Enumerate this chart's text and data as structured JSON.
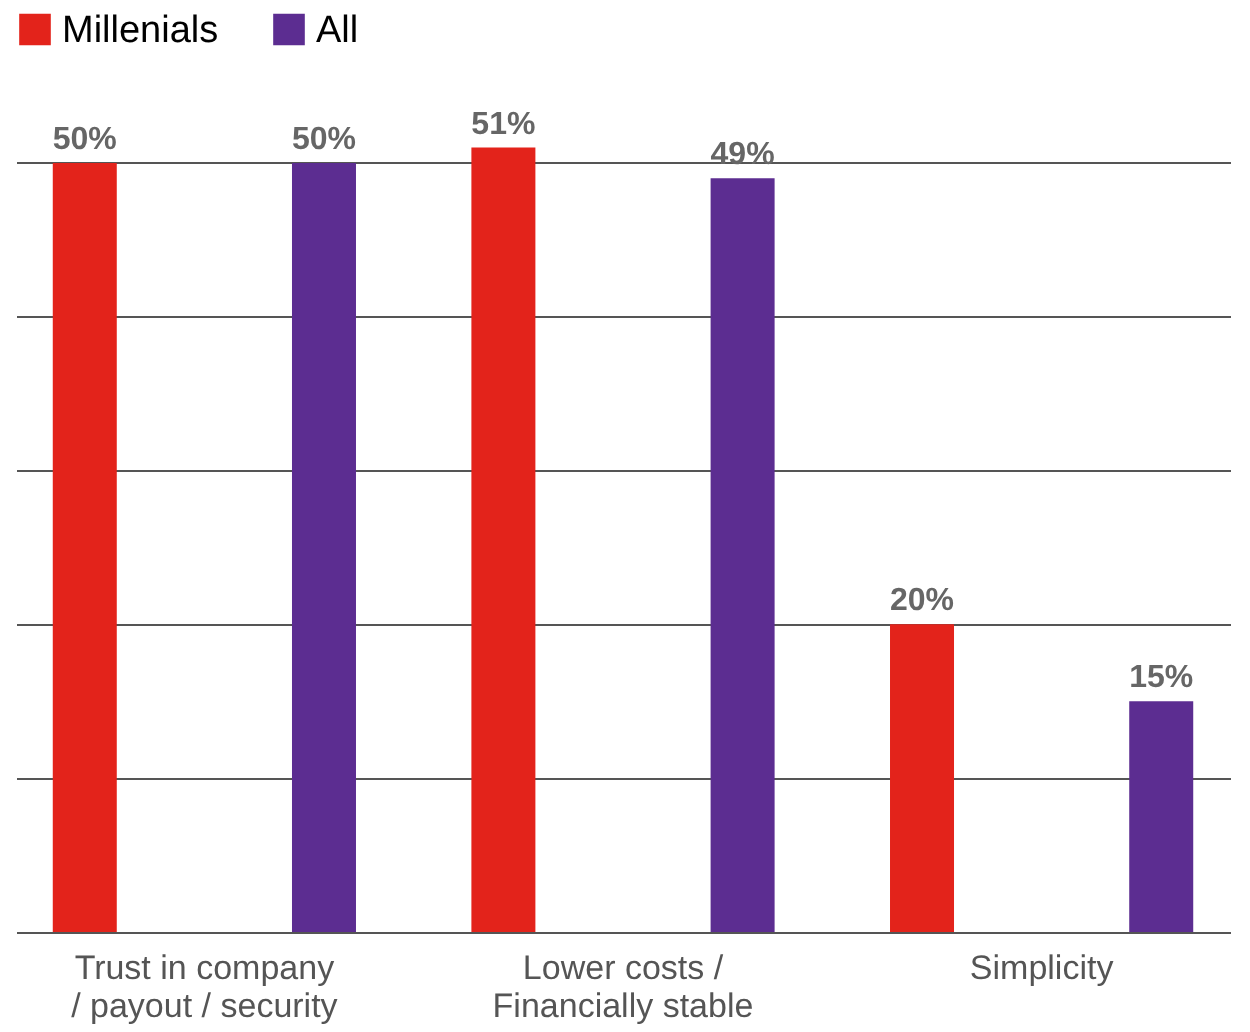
{
  "chart_data": {
    "type": "bar",
    "categories": [
      "Trust in company\n/ payout / security",
      "Lower costs /\nFinancially stable",
      "Simplicity"
    ],
    "series": [
      {
        "name": "Millenials",
        "color": "#e3231b",
        "values": [
          50,
          51,
          20
        ],
        "value_labels": [
          "50%",
          "51%",
          "20%"
        ]
      },
      {
        "name": "All",
        "color": "#5c2d91",
        "values": [
          50,
          49,
          15
        ],
        "value_labels": [
          "50%",
          "49%",
          "15%"
        ]
      }
    ],
    "grid": "y",
    "legend": "top",
    "tick_labels": "x"
  }
}
